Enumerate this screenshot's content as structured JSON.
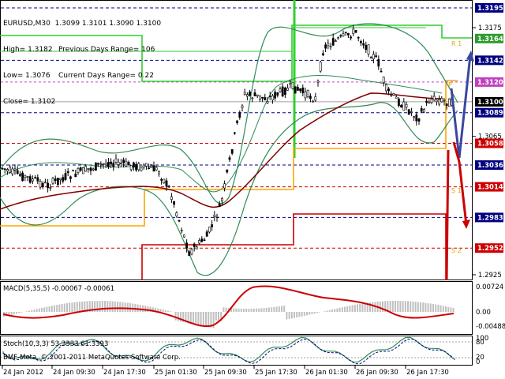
{
  "header": {
    "symbol_line": "EURUSD,M30",
    "ohlc": "1.3099 1.3101 1.3090 1.3100",
    "high": "High= 1.3182",
    "low": "Low= 1.3076",
    "close": "Close= 1.3102",
    "prev_range": "Previous Days Range= 106",
    "curr_range": "Current Days Range= 0.22"
  },
  "price_axis": {
    "labels": [
      "1.3195",
      "1.3175",
      "1.3164",
      "1.3142",
      "1.3120",
      "1.3100",
      "1.3089",
      "1.3065",
      "1.3058",
      "1.3036",
      "1.3014",
      "1.2983",
      "1.2952",
      "1.2925"
    ]
  },
  "level_labels": {
    "r1": "R 1",
    "pivot": "P",
    "s1": "S 1",
    "s2": "S 2"
  },
  "macd": {
    "title": "MACD(5,35,5) -0.00067 -0.00061",
    "axis": [
      "0.00724",
      "0.00",
      "-0.00488"
    ]
  },
  "stoch": {
    "title": "Stoch(10,3,3) 53.3333 61.3393",
    "axis": [
      "100",
      "80",
      "20",
      "0"
    ]
  },
  "copyright": "BMF-Meta, © 2001-2011 MetaQuotes Software Corp.",
  "time_axis": {
    "labels": [
      "24 Jan 2012",
      "24 Jan 09:30",
      "24 Jan 17:30",
      "25 Jan 01:30",
      "25 Jan 09:30",
      "25 Jan 17:30",
      "26 Jan 01:30",
      "26 Jan 09:30",
      "26 Jan 17:30"
    ]
  },
  "colors": {
    "background": "#ffffff",
    "candles": "#000000",
    "ma": "#800000",
    "bands": "#2e8b57",
    "resistance": "#32cd32",
    "pivot_line": "#ffa500",
    "support": "#cc0000",
    "macd_signal": "#cc0000",
    "macd_hist": "#c0c0c0",
    "stoch_main": "#2e8b57",
    "stoch_signal": "#000080",
    "arrow_up": "#3a46a0",
    "arrow_down": "#cc0000",
    "bid_tag": "#000000",
    "level_tag_dark": "#000080"
  }
}
